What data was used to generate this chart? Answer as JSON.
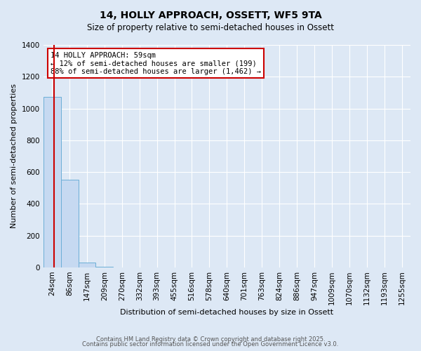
{
  "title": "14, HOLLY APPROACH, OSSETT, WF5 9TA",
  "subtitle": "Size of property relative to semi-detached houses in Ossett",
  "bar_labels": [
    "24sqm",
    "86sqm",
    "147sqm",
    "209sqm",
    "270sqm",
    "332sqm",
    "393sqm",
    "455sqm",
    "516sqm",
    "578sqm",
    "640sqm",
    "701sqm",
    "763sqm",
    "824sqm",
    "886sqm",
    "947sqm",
    "1009sqm",
    "1070sqm",
    "1132sqm",
    "1193sqm",
    "1255sqm"
  ],
  "bar_values": [
    1075,
    550,
    30,
    5,
    0,
    0,
    0,
    0,
    0,
    0,
    0,
    0,
    0,
    0,
    0,
    0,
    0,
    0,
    0,
    0,
    0
  ],
  "bar_color": "#c6d9f1",
  "bar_edge_color": "#6baed6",
  "ylim": [
    0,
    1400
  ],
  "yticks": [
    0,
    200,
    400,
    600,
    800,
    1000,
    1200,
    1400
  ],
  "ylabel": "Number of semi-detached properties",
  "xlabel": "Distribution of semi-detached houses by size in Ossett",
  "property_line_x": 0.6,
  "property_line_color": "#cc0000",
  "annotation_title": "14 HOLLY APPROACH: 59sqm",
  "annotation_line1": "← 12% of semi-detached houses are smaller (199)",
  "annotation_line2": "88% of semi-detached houses are larger (1,462) →",
  "annotation_box_color": "#cc0000",
  "background_color": "#dde8f5",
  "footer1": "Contains HM Land Registry data © Crown copyright and database right 2025.",
  "footer2": "Contains public sector information licensed under the Open Government Licence v3.0."
}
